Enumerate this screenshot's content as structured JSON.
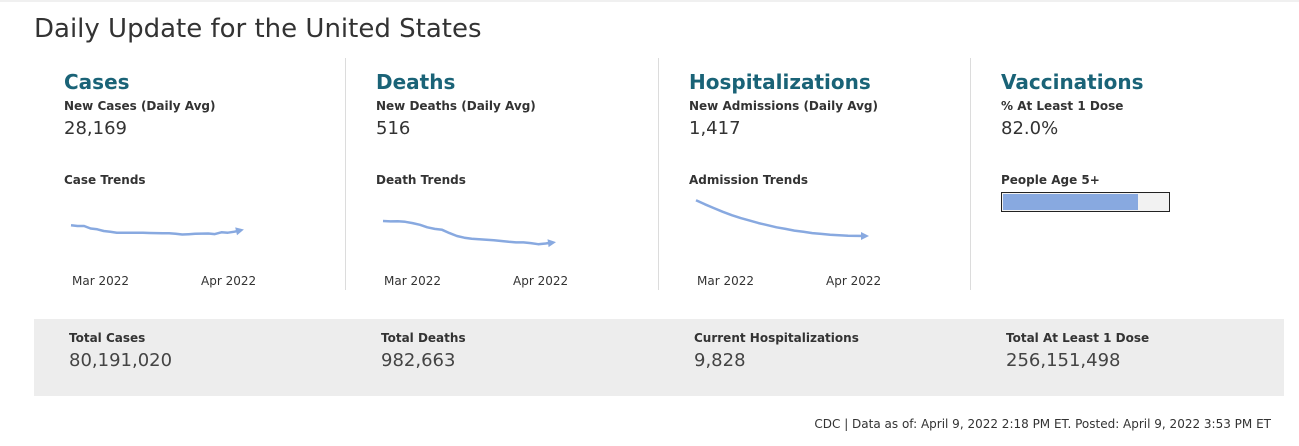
{
  "title": "Daily Update for the United States",
  "colors": {
    "accent": "#1a6377",
    "trend_line": "#88a9e0",
    "totals_bg": "#ededed"
  },
  "cards": [
    {
      "heading": "Cases",
      "sub_label": "New Cases (Daily Avg)",
      "value": "28,169",
      "trend_label": "Case Trends",
      "axis": [
        "Mar 2022",
        "Apr 2022"
      ],
      "trend": [
        45,
        44,
        44,
        41,
        40,
        38,
        37,
        36,
        36,
        36,
        36,
        35.8,
        35.6,
        35.5,
        35.3,
        35.2,
        34.8,
        33.8,
        34.2,
        34.6,
        34.9,
        35,
        34.3,
        36.4,
        36,
        37.2,
        39
      ]
    },
    {
      "heading": "Deaths",
      "sub_label": "New Deaths (Daily Avg)",
      "value": "516",
      "trend_label": "Death Trends",
      "axis": [
        "Mar 2022",
        "Apr 2022"
      ],
      "trend": [
        50,
        49.5,
        49.8,
        49,
        47.5,
        45.5,
        42.5,
        40.5,
        39.5,
        35.5,
        32,
        30,
        28.8,
        28.2,
        27.6,
        27,
        26,
        25,
        24.3,
        24.3,
        23.5,
        22.2,
        23,
        24.2
      ]
    },
    {
      "heading": "Hospitalizations",
      "sub_label": "New Admissions (Daily Avg)",
      "value": "1,417",
      "trend_label": "Admission Trends",
      "axis": [
        "Mar 2022",
        "Apr 2022"
      ],
      "trend": [
        75,
        70,
        65.5,
        61,
        57,
        53.5,
        50.5,
        47.5,
        45,
        42.5,
        40.5,
        38.5,
        37,
        35.5,
        34.5,
        33.5,
        32.8,
        32.3,
        32.1,
        32
      ]
    },
    {
      "heading": "Vaccinations",
      "sub_label": "% At Least 1 Dose",
      "value": "82.0%",
      "trend_label": "People Age 5+",
      "progress_percent": 82.0
    }
  ],
  "totals": [
    {
      "label": "Total Cases",
      "value": "80,191,020"
    },
    {
      "label": "Total Deaths",
      "value": "982,663"
    },
    {
      "label": "Current Hospitalizations",
      "value": "9,828"
    },
    {
      "label": "Total At Least 1 Dose",
      "value": "256,151,498"
    }
  ],
  "footer": "CDC | Data as of: April 9, 2022 2:18 PM ET. Posted: April 9, 2022 3:53 PM ET"
}
